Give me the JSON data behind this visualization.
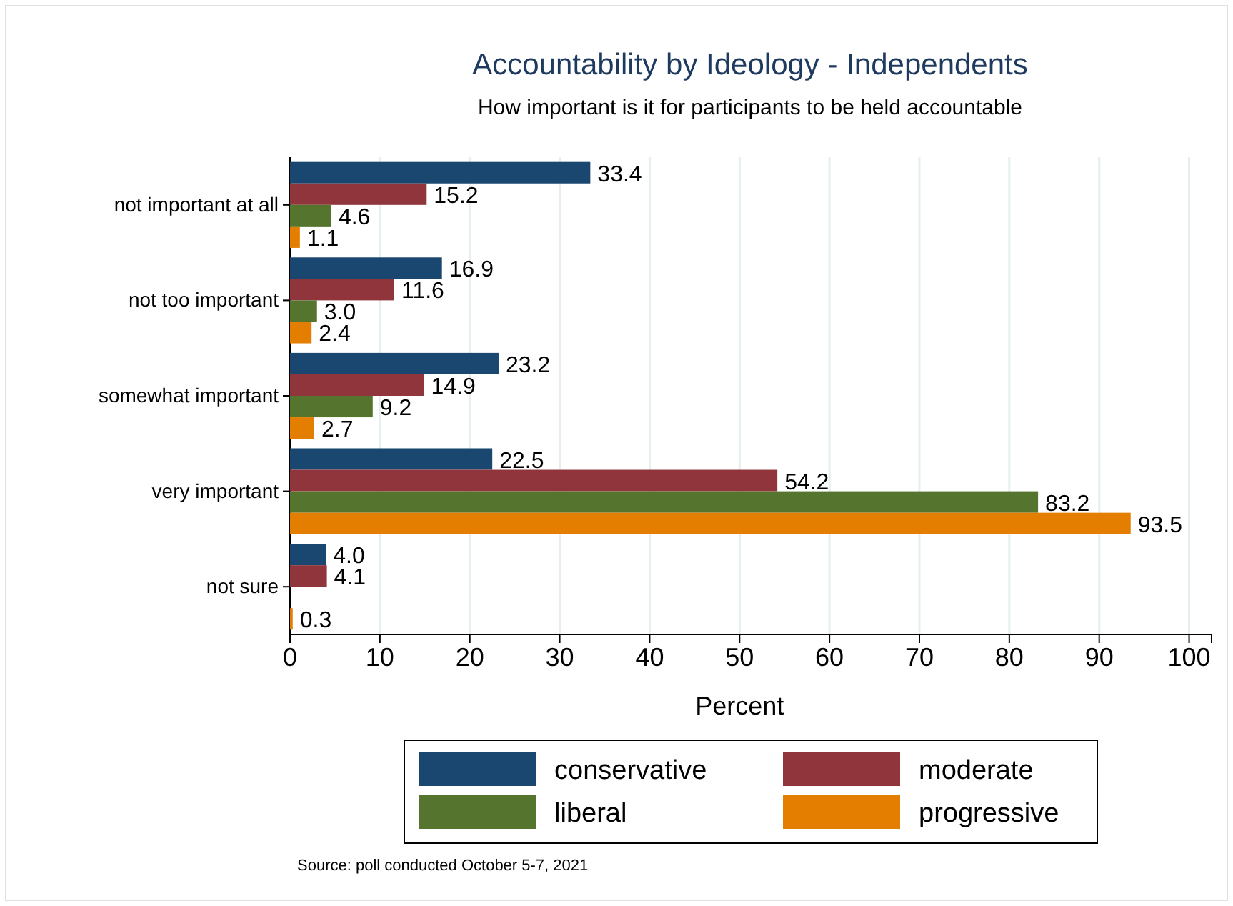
{
  "chart_data": {
    "type": "bar",
    "orientation": "horizontal",
    "title": "Accountability by Ideology - Independents",
    "subtitle": "How important is it for participants to be held accountable",
    "xlabel": "Percent",
    "categories": [
      "not important at all",
      "not too important",
      "somewhat important",
      "very important",
      "not sure"
    ],
    "series": [
      {
        "name": "conservative",
        "color": "#1a476f",
        "values": [
          33.4,
          16.9,
          23.2,
          22.5,
          4.0
        ],
        "value_labels": [
          "33.4",
          "16.9",
          "23.2",
          "22.5",
          "4.0"
        ]
      },
      {
        "name": "moderate",
        "color": "#90353b",
        "values": [
          15.2,
          11.6,
          14.9,
          54.2,
          4.1
        ],
        "value_labels": [
          "15.2",
          "11.6",
          "14.9",
          "54.2",
          "4.1"
        ]
      },
      {
        "name": "liberal",
        "color": "#55752f",
        "values": [
          4.6,
          3.0,
          9.2,
          83.2,
          null
        ],
        "value_labels": [
          "4.6",
          "3.0",
          "9.2",
          "83.2",
          null
        ]
      },
      {
        "name": "progressive",
        "color": "#e37e00",
        "values": [
          1.1,
          2.4,
          2.7,
          93.5,
          0.3
        ],
        "value_labels": [
          "1.1",
          "2.4",
          "2.7",
          "93.5",
          "0.3"
        ]
      }
    ],
    "xlim": [
      0,
      102.5
    ],
    "xticks": [
      0,
      10,
      20,
      30,
      40,
      50,
      60,
      70,
      80,
      90,
      100
    ],
    "grid": "x",
    "legend": "bottom",
    "annotations": [
      "Source: poll conducted October 5-7, 2021"
    ]
  }
}
